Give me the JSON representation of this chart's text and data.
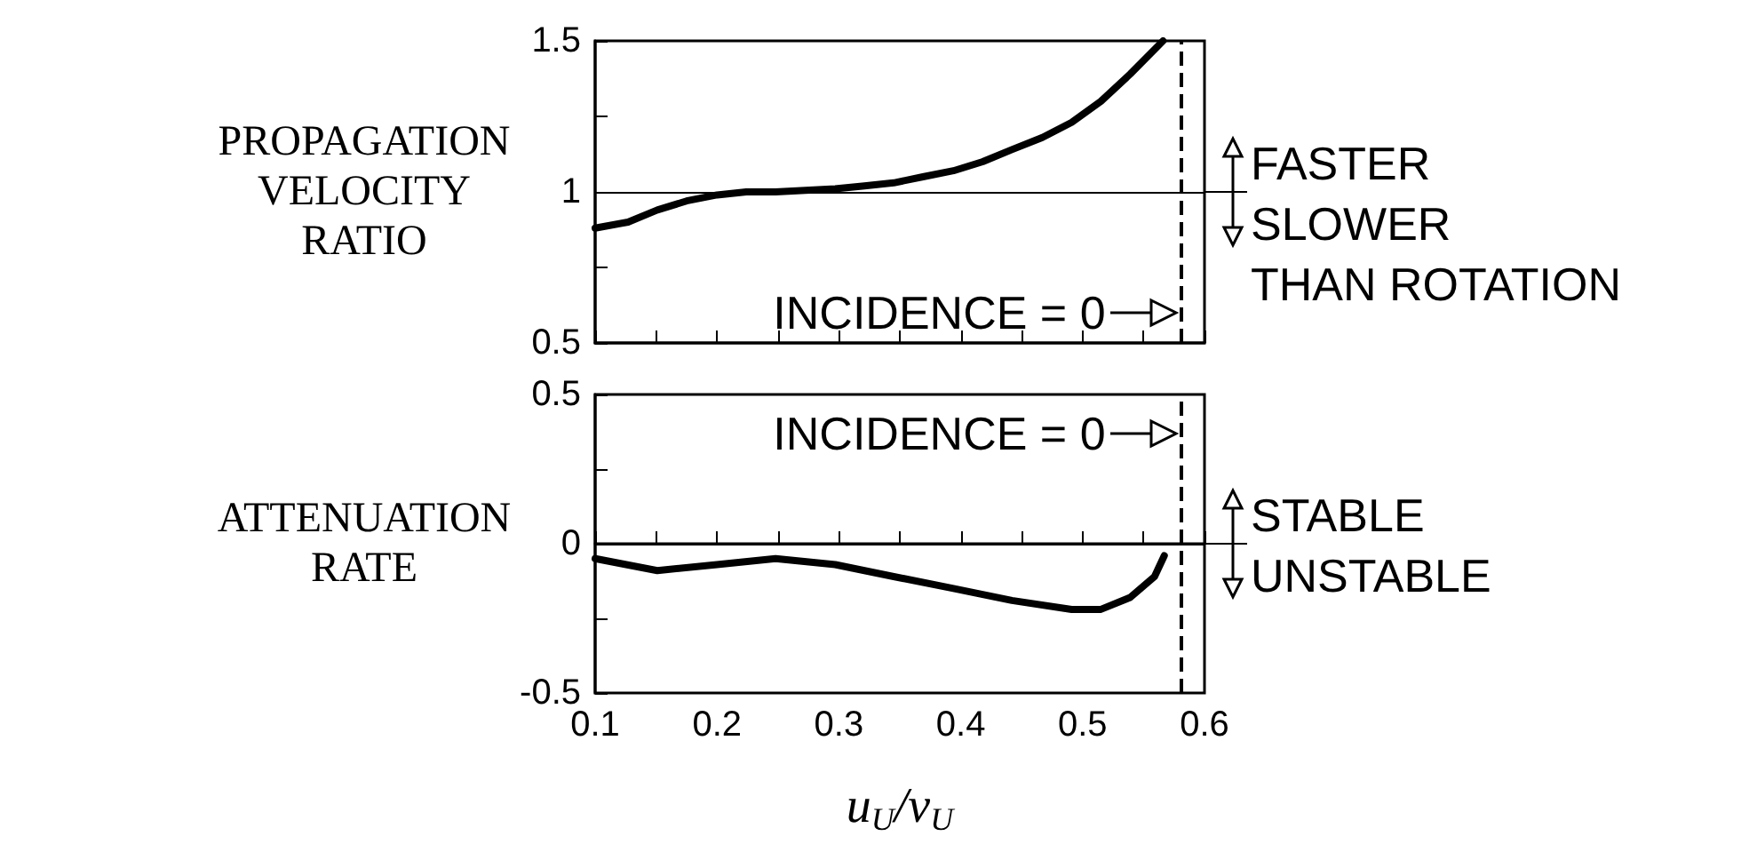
{
  "chart_data": [
    {
      "type": "line",
      "color": "#000000",
      "marker": "none",
      "tick_labels": "y",
      "ylabel": "PROPAGATION VELOCITY RATIO",
      "x": [
        0.1,
        0.127,
        0.151,
        0.175,
        0.2,
        0.224,
        0.248,
        0.297,
        0.321,
        0.345,
        0.369,
        0.394,
        0.418,
        0.442,
        0.467,
        0.491,
        0.515,
        0.539,
        0.566
      ],
      "values": [
        0.88,
        0.9,
        0.94,
        0.97,
        0.99,
        1.0,
        1.0,
        1.01,
        1.02,
        1.03,
        1.05,
        1.07,
        1.1,
        1.14,
        1.18,
        1.23,
        1.3,
        1.39,
        1.5
      ],
      "xlim": [
        0.1,
        0.6
      ],
      "xticks": [
        0.1,
        {
          "value": 0.15,
          "label": null
        },
        0.2,
        {
          "value": 0.25,
          "label": null
        },
        0.3,
        {
          "value": 0.35,
          "label": null
        },
        0.4,
        {
          "value": 0.45,
          "label": null
        },
        0.5,
        {
          "value": 0.55,
          "label": null
        },
        0.6
      ],
      "ylim": [
        0.5,
        1.5
      ],
      "yticks": [
        0.5,
        {
          "value": 0.75,
          "label": null
        },
        1,
        {
          "value": 1.25,
          "label": null
        },
        1.5
      ],
      "ref_lines": [
        {
          "axis": "x",
          "value": 0.58,
          "line_style": "dashed"
        },
        {
          "axis": "y",
          "value": 1
        }
      ],
      "annotations": [
        {
          "text": "INCIDENCE = 0",
          "x": 0.58,
          "y": 0.6
        },
        "FASTER",
        "SLOWER",
        "THAN ROTATION"
      ]
    },
    {
      "type": "line",
      "color": "#000000",
      "marker": "none",
      "ylabel": "ATTENUATION RATE",
      "xlabel": "u$_{U}$/v$_{U}$",
      "x": [
        0.1,
        0.151,
        0.2,
        0.248,
        0.297,
        0.345,
        0.394,
        0.442,
        0.491,
        0.515,
        0.539,
        0.559,
        0.567
      ],
      "values": [
        -0.05,
        -0.09,
        -0.07,
        -0.05,
        -0.07,
        -0.11,
        -0.15,
        -0.19,
        -0.22,
        -0.22,
        -0.18,
        -0.11,
        -0.04
      ],
      "xlim": [
        0.1,
        0.6
      ],
      "xticks": [
        0.1,
        {
          "value": 0.15,
          "label": null
        },
        0.2,
        {
          "value": 0.25,
          "label": null
        },
        0.3,
        {
          "value": 0.35,
          "label": null
        },
        0.4,
        {
          "value": 0.45,
          "label": null
        },
        0.5,
        {
          "value": 0.55,
          "label": null
        },
        0.6
      ],
      "ylim": [
        -0.5,
        0.5
      ],
      "yticks": [
        -0.5,
        {
          "value": -0.25,
          "label": null
        },
        0,
        {
          "value": 0.25,
          "label": null
        },
        0.5
      ],
      "ref_lines": [
        {
          "axis": "x",
          "value": 0.58,
          "line_style": "dashed"
        },
        {
          "axis": "y",
          "value": 0
        }
      ],
      "annotations": [
        {
          "text": "INCIDENCE = 0",
          "x": 0.58,
          "y": 0.37
        },
        "STABLE",
        "UNSTABLE"
      ]
    }
  ]
}
